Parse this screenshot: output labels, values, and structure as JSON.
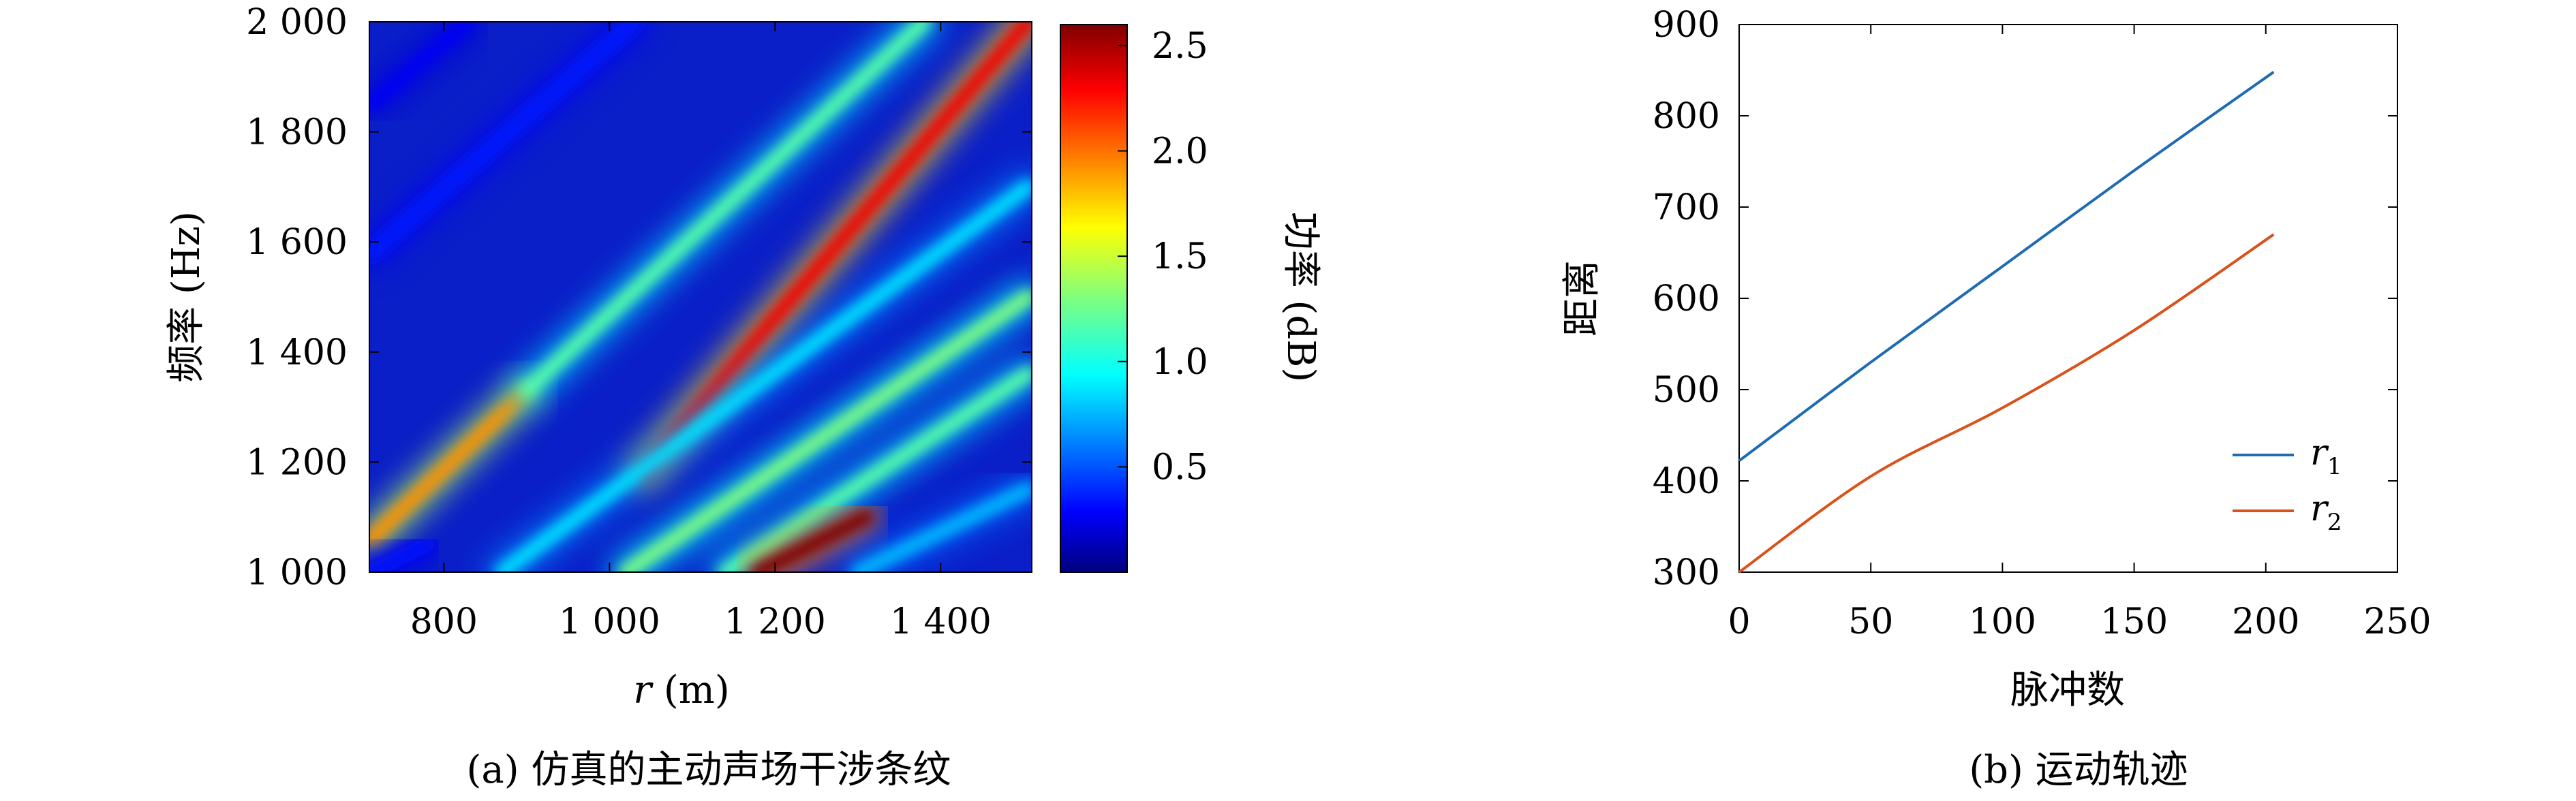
{
  "captions": {
    "a": "(a) 仿真的主动声场干涉条纹",
    "b": "(b) 运动轨迹"
  },
  "chart_data": [
    {
      "type": "heatmap",
      "title": "",
      "xlabel_var": "r",
      "xlabel_unit": "(m)",
      "ylabel": "频率 (Hz)",
      "xlim": [
        710,
        1510
      ],
      "ylim": [
        1000,
        2000
      ],
      "xticks": [
        800,
        1000,
        1200,
        1400
      ],
      "xtick_labels": [
        "800",
        "1 000",
        "1 200",
        "1 400"
      ],
      "yticks": [
        1000,
        1200,
        1400,
        1600,
        1800,
        2000
      ],
      "ytick_labels": [
        "1 000",
        "1 200",
        "1 400",
        "1 600",
        "1 800",
        "2 000"
      ],
      "colorbar": {
        "label": "功率 (dB)",
        "range": [
          0,
          2.6
        ],
        "ticks": [
          0.5,
          1.0,
          1.5,
          2.0,
          2.5
        ],
        "tick_labels": [
          "0.5",
          "1.0",
          "1.5",
          "2.0",
          "2.5"
        ],
        "colormap": "jet"
      },
      "striations": [
        {
          "from": [
            712,
            1060
          ],
          "to": [
            900,
            1330
          ],
          "peak": 1.9
        },
        {
          "from": [
            900,
            1330
          ],
          "to": [
            1380,
            2000
          ],
          "peak": 1.2
        },
        {
          "from": [
            1040,
            1180
          ],
          "to": [
            1505,
            2000
          ],
          "peak": 2.3
        },
        {
          "from": [
            870,
            1000
          ],
          "to": [
            1505,
            1700
          ],
          "peak": 0.9
        },
        {
          "from": [
            1020,
            1000
          ],
          "to": [
            1505,
            1500
          ],
          "peak": 1.3
        },
        {
          "from": [
            1140,
            1000
          ],
          "to": [
            1505,
            1360
          ],
          "peak": 1.2
        },
        {
          "from": [
            1180,
            1000
          ],
          "to": [
            1310,
            1100
          ],
          "peak": 2.6
        },
        {
          "from": [
            1300,
            1000
          ],
          "to": [
            1505,
            1150
          ],
          "peak": 0.8
        },
        {
          "from": [
            712,
            1580
          ],
          "to": [
            1030,
            2000
          ],
          "peak": 0.4
        },
        {
          "from": [
            712,
            1850
          ],
          "to": [
            830,
            2000
          ],
          "peak": 0.3
        },
        {
          "from": [
            712,
            1000
          ],
          "to": [
            780,
            1050
          ],
          "peak": 0.35
        }
      ]
    },
    {
      "type": "line",
      "title": "",
      "xlabel": "脉冲数",
      "ylabel": "距离",
      "xlim": [
        0,
        250
      ],
      "ylim": [
        300,
        900
      ],
      "xticks": [
        0,
        50,
        100,
        150,
        200,
        250
      ],
      "yticks": [
        300,
        400,
        500,
        600,
        700,
        800,
        900
      ],
      "legend_position": "right-middle",
      "series": [
        {
          "name": "r",
          "subscript": "1",
          "color": "#1f6bb3",
          "x": [
            0,
            50,
            100,
            150,
            203
          ],
          "y": [
            422,
            530,
            635,
            740,
            848
          ]
        },
        {
          "name": "r",
          "subscript": "2",
          "color": "#d95219",
          "x": [
            0,
            50,
            100,
            150,
            203
          ],
          "y": [
            300,
            405,
            480,
            565,
            670
          ]
        }
      ]
    }
  ]
}
